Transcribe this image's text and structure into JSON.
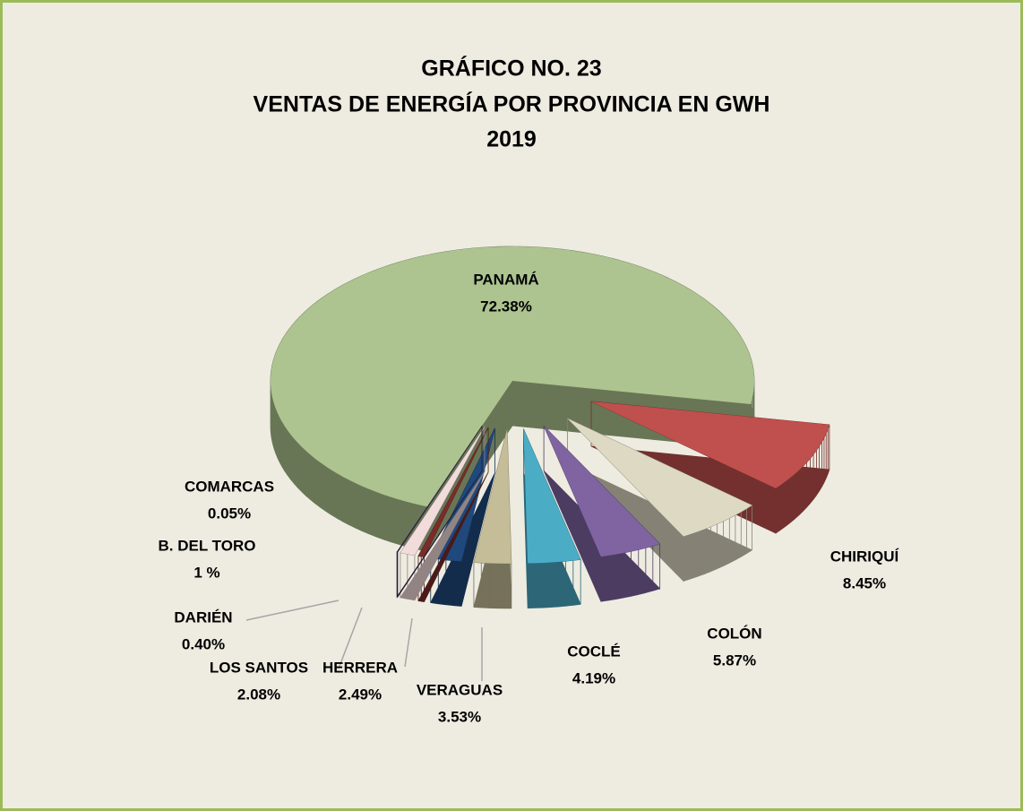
{
  "chart_data": {
    "type": "pie3d",
    "title": [
      "GRÁFICO NO.  23",
      "VENTAS DE ENERGÍA POR PROVINCIA EN GWH",
      "2019"
    ],
    "categories": [
      "PANAMÁ",
      "CHIRIQUÍ",
      "COLÓN",
      "COCLÉ",
      "VERAGUAS",
      "HERRERA",
      "LOS SANTOS",
      "DARIÉN",
      "B. DEL TORO",
      "COMARCAS"
    ],
    "values": [
      72.38,
      8.45,
      5.87,
      4.19,
      3.53,
      2.49,
      2.08,
      0.4,
      1,
      0.05
    ],
    "value_labels": [
      "72.38%",
      "8.45%",
      "5.87%",
      "4.19%",
      "3.53%",
      "2.49%",
      "2.08%",
      "0.40%",
      "1 %",
      "0.05%"
    ],
    "colors": [
      "#adc490",
      "#c0504d",
      "#ddd9c3",
      "#8064a2",
      "#4bacc6",
      "#c4bd97",
      "#1f497d",
      "#7b2c2a",
      "#f2dcdb",
      "#3d2a55"
    ]
  }
}
